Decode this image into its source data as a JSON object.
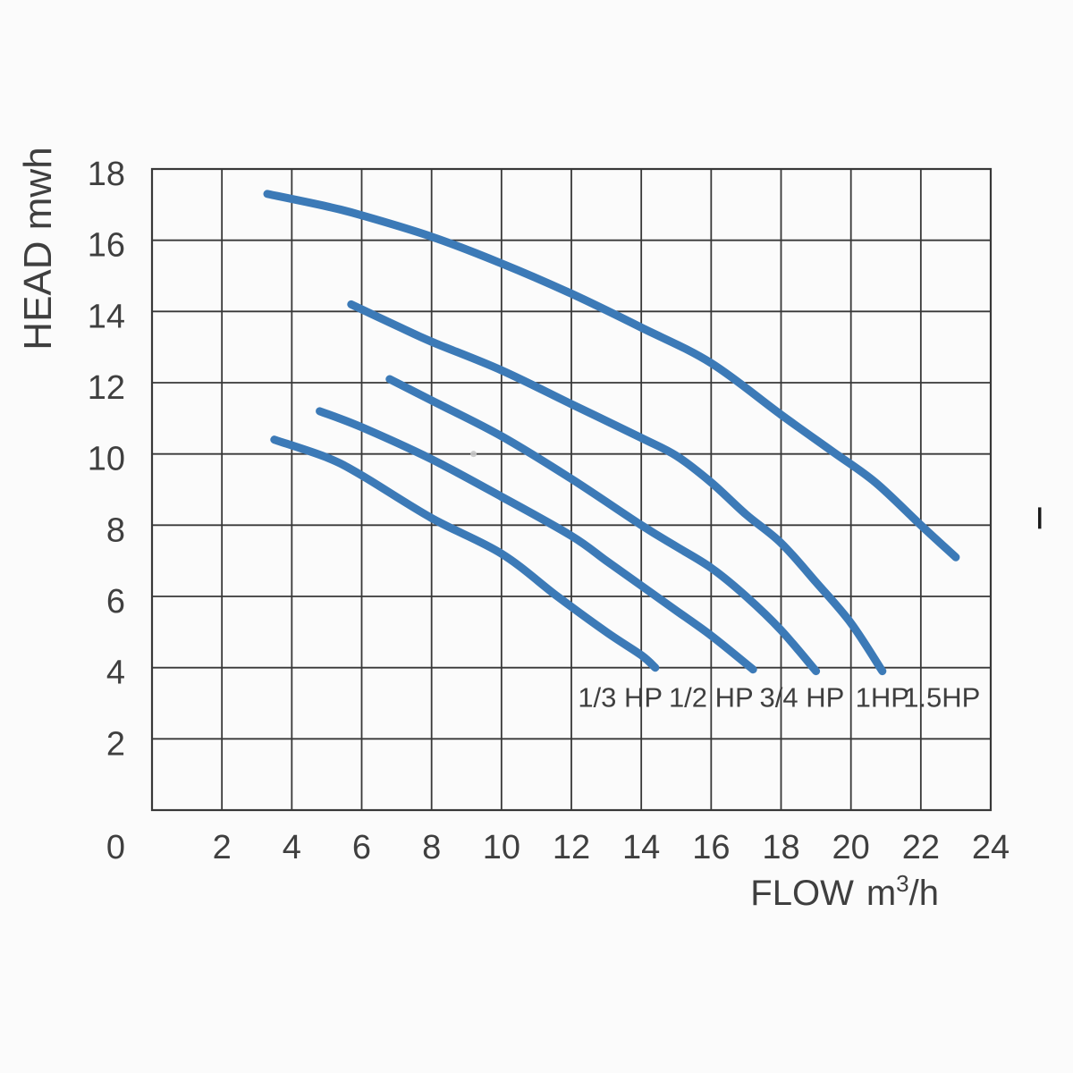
{
  "figure": {
    "description": "Pump performance curves: head versus flow for five motor sizes"
  },
  "chart_data": {
    "type": "line",
    "title": "",
    "ylabel": "HEAD mwh",
    "xlabel_parts": {
      "word": "FLOW",
      "unit_base": "m",
      "unit_sup": "3",
      "unit_end": "/h"
    },
    "xlim": [
      0,
      24
    ],
    "ylim": [
      0,
      18
    ],
    "x_ticks": [
      2,
      4,
      6,
      8,
      10,
      12,
      14,
      16,
      18,
      20,
      22,
      24
    ],
    "y_ticks": [
      2,
      4,
      6,
      8,
      10,
      12,
      14,
      16,
      18
    ],
    "origin_label": "0",
    "grid": {
      "show": true,
      "step_x": 2,
      "step_y": 2
    },
    "legend_position": "labels-below-curve-ends",
    "label_head": 2.9,
    "series": [
      {
        "name": "1/3 HP",
        "label_flow": 13.4,
        "points": [
          [
            3.5,
            10.4
          ],
          [
            5,
            9.9
          ],
          [
            6,
            9.4
          ],
          [
            8,
            8.2
          ],
          [
            10,
            7.2
          ],
          [
            11.6,
            6.0
          ],
          [
            13,
            5.0
          ],
          [
            14,
            4.35
          ],
          [
            14.4,
            4.0
          ]
        ]
      },
      {
        "name": "1/2 HP",
        "label_flow": 16.0,
        "points": [
          [
            4.8,
            11.2
          ],
          [
            6,
            10.75
          ],
          [
            8,
            9.85
          ],
          [
            10,
            8.8
          ],
          [
            12,
            7.7
          ],
          [
            13,
            7.0
          ],
          [
            14,
            6.3
          ],
          [
            15,
            5.6
          ],
          [
            16,
            4.9
          ],
          [
            17.2,
            3.95
          ]
        ]
      },
      {
        "name": "3/4 HP",
        "label_flow": 18.6,
        "points": [
          [
            6.8,
            12.1
          ],
          [
            8,
            11.5
          ],
          [
            10,
            10.5
          ],
          [
            12,
            9.3
          ],
          [
            14,
            8.0
          ],
          [
            15,
            7.4
          ],
          [
            16,
            6.8
          ],
          [
            17,
            6.0
          ],
          [
            18,
            5.05
          ],
          [
            19,
            3.9
          ]
        ]
      },
      {
        "name": "1HP",
        "label_flow": 20.9,
        "points": [
          [
            5.7,
            14.2
          ],
          [
            7,
            13.6
          ],
          [
            8,
            13.15
          ],
          [
            10,
            12.35
          ],
          [
            12,
            11.4
          ],
          [
            14,
            10.45
          ],
          [
            15,
            9.95
          ],
          [
            16,
            9.2
          ],
          [
            17,
            8.3
          ],
          [
            18,
            7.5
          ],
          [
            19,
            6.4
          ],
          [
            20,
            5.25
          ],
          [
            20.9,
            3.9
          ]
        ]
      },
      {
        "name": "1.5HP",
        "label_flow": 22.6,
        "points": [
          [
            3.3,
            17.3
          ],
          [
            5,
            16.95
          ],
          [
            6,
            16.7
          ],
          [
            8,
            16.1
          ],
          [
            10,
            15.35
          ],
          [
            12,
            14.5
          ],
          [
            14,
            13.55
          ],
          [
            16,
            12.55
          ],
          [
            18,
            11.1
          ],
          [
            19.5,
            10.05
          ],
          [
            20.7,
            9.2
          ],
          [
            22,
            8.0
          ],
          [
            23,
            7.1
          ]
        ]
      }
    ],
    "annotations": [
      {
        "type": "dot",
        "flow": 9.2,
        "head": 10.0
      },
      {
        "type": "edge-tick",
        "flow": 25.4,
        "head_from": 8.5,
        "head_to": 7.9
      }
    ],
    "colors": {
      "curve": "#3C7AB7",
      "grid": "#383838",
      "text": "#3f3f3f",
      "background": "#fbfbfb",
      "dot": "#c7c7c7",
      "edge_tick": "#1a1a1a"
    }
  }
}
